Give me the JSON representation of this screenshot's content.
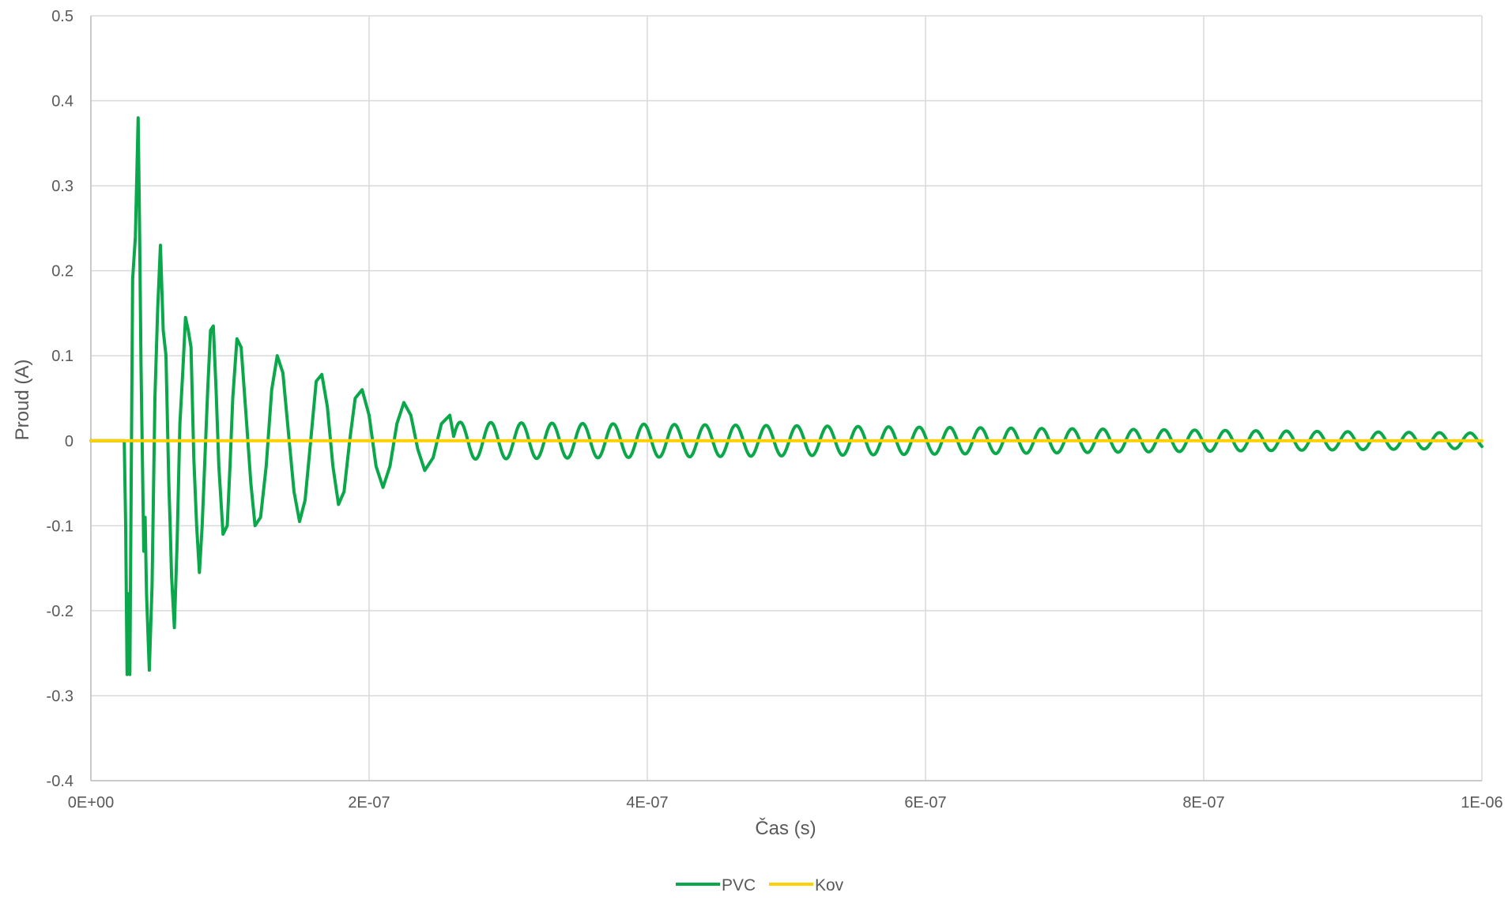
{
  "chart_data": {
    "type": "line",
    "title": "",
    "xlabel": "Čas (s)",
    "ylabel": "Proud (A)",
    "xlim": [
      0,
      1e-06
    ],
    "ylim": [
      -0.4,
      0.5
    ],
    "x_ticks": [
      {
        "value": 0,
        "label": "0E+00"
      },
      {
        "value": 2e-07,
        "label": "2E-07"
      },
      {
        "value": 4e-07,
        "label": "4E-07"
      },
      {
        "value": 6e-07,
        "label": "6E-07"
      },
      {
        "value": 8e-07,
        "label": "8E-07"
      },
      {
        "value": 1e-06,
        "label": "1E-06"
      }
    ],
    "y_ticks": [
      {
        "value": 0.5,
        "label": "0.5"
      },
      {
        "value": 0.4,
        "label": "0.4"
      },
      {
        "value": 0.3,
        "label": "0.3"
      },
      {
        "value": 0.2,
        "label": "0.2"
      },
      {
        "value": 0.1,
        "label": "0.1"
      },
      {
        "value": 0,
        "label": "0"
      },
      {
        "value": -0.1,
        "label": "-0.1"
      },
      {
        "value": -0.2,
        "label": "-0.2"
      },
      {
        "value": -0.3,
        "label": "-0.3"
      },
      {
        "value": -0.4,
        "label": "-0.4"
      }
    ],
    "grid": true,
    "legend_position": "bottom",
    "series": [
      {
        "name": "PVC",
        "color": "#0aa84a",
        "x": [
          0,
          2.2e-08,
          2.4e-08,
          2.5e-08,
          2.6e-08,
          2.7e-08,
          2.8e-08,
          3e-08,
          3.2e-08,
          3.4e-08,
          3.5e-08,
          3.6e-08,
          3.8e-08,
          3.9e-08,
          4e-08,
          4.2e-08,
          4.4e-08,
          4.6e-08,
          4.8e-08,
          5e-08,
          5.2e-08,
          5.4e-08,
          5.6e-08,
          5.7e-08,
          5.8e-08,
          6e-08,
          6.2e-08,
          6.4e-08,
          6.6e-08,
          6.8e-08,
          7e-08,
          7.2e-08,
          7.4e-08,
          7.6e-08,
          7.8e-08,
          8e-08,
          8.2e-08,
          8.4e-08,
          8.6e-08,
          8.8e-08,
          9e-08,
          9.2e-08,
          9.5e-08,
          9.8e-08,
          1e-07,
          1.02e-07,
          1.05e-07,
          1.08e-07,
          1.12e-07,
          1.15e-07,
          1.18e-07,
          1.22e-07,
          1.26e-07,
          1.3e-07,
          1.34e-07,
          1.38e-07,
          1.42e-07,
          1.46e-07,
          1.5e-07,
          1.54e-07,
          1.58e-07,
          1.62e-07,
          1.66e-07,
          1.7e-07,
          1.74e-07,
          1.78e-07,
          1.82e-07,
          1.86e-07,
          1.9e-07,
          1.95e-07,
          2e-07,
          2.05e-07,
          2.1e-07,
          2.15e-07,
          2.2e-07,
          2.25e-07,
          2.3e-07,
          2.35e-07,
          2.4e-07,
          2.46e-07,
          2.52e-07,
          2.58e-07
        ],
        "y": [
          0,
          0,
          0,
          -0.1,
          -0.275,
          -0.18,
          -0.275,
          0.19,
          0.24,
          0.38,
          0.25,
          0.09,
          -0.13,
          -0.09,
          -0.18,
          -0.27,
          -0.17,
          0.05,
          0.155,
          0.23,
          0.13,
          0.1,
          -0.05,
          -0.1,
          -0.16,
          -0.22,
          -0.12,
          0.02,
          0.08,
          0.145,
          0.13,
          0.11,
          -0.02,
          -0.1,
          -0.155,
          -0.1,
          -0.02,
          0.06,
          0.13,
          0.135,
          0.06,
          -0.03,
          -0.11,
          -0.1,
          -0.03,
          0.05,
          0.12,
          0.11,
          0.02,
          -0.05,
          -0.1,
          -0.09,
          -0.03,
          0.06,
          0.1,
          0.08,
          0.01,
          -0.06,
          -0.095,
          -0.07,
          0.0,
          0.07,
          0.078,
          0.04,
          -0.03,
          -0.075,
          -0.06,
          0.0,
          0.05,
          0.06,
          0.03,
          -0.03,
          -0.055,
          -0.03,
          0.02,
          0.045,
          0.03,
          -0.01,
          -0.035,
          -0.02,
          0.02,
          0.03
        ],
        "tail": {
          "x_start": 2.6e-07,
          "x_end": 1e-06,
          "period": 2.2e-08,
          "amp_start": 0.022,
          "amp_end": 0.009,
          "phase": 0
        }
      },
      {
        "name": "Kov",
        "color": "#ffd000",
        "x": [
          0,
          1e-06
        ],
        "y": [
          0,
          0
        ]
      }
    ]
  }
}
